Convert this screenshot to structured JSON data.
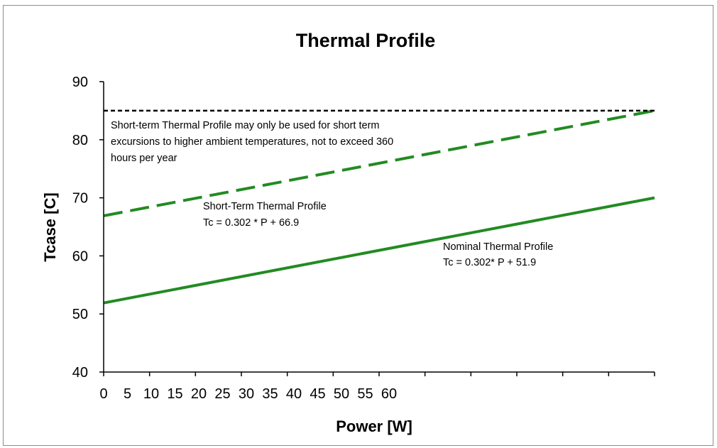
{
  "chart_data": {
    "type": "line",
    "title": "Thermal Profile",
    "xlabel": "Power [W]",
    "ylabel": "Tcase [C]",
    "xlim": [
      0,
      150
    ],
    "ylim": [
      40,
      90
    ],
    "x_tick_labels": [
      "0",
      "5",
      "10",
      "15",
      "20",
      "25",
      "30",
      "35",
      "40",
      "45",
      "50",
      "55",
      "60"
    ],
    "y_ticks": [
      40,
      50,
      60,
      70,
      80,
      90
    ],
    "grid": false,
    "series": [
      {
        "name": "Short-Term Thermal Profile",
        "style": "dashed",
        "color": "#228b22",
        "points": [
          [
            0,
            66.9
          ],
          [
            150,
            85.0
          ]
        ]
      },
      {
        "name": "Nominal Thermal Profile",
        "style": "solid",
        "color": "#228b22",
        "points": [
          [
            0,
            51.9
          ],
          [
            150,
            70.0
          ]
        ]
      },
      {
        "style": "dotted",
        "color": "#000000",
        "points": [
          [
            0,
            85
          ],
          [
            150,
            85
          ]
        ]
      }
    ],
    "annotations": {
      "limit_note": [
        "Short-term Thermal Profile may only be used for short term",
        "excursions to higher ambient temperatures, not to exceed 360",
        "hours per year"
      ],
      "short_term_label": "Short-Term Thermal Profile",
      "short_term_equation": "Tc = 0.302 * P + 66.9",
      "nominal_label": "Nominal Thermal Profile",
      "nominal_equation": "Tc = 0.302* P + 51.9"
    }
  }
}
